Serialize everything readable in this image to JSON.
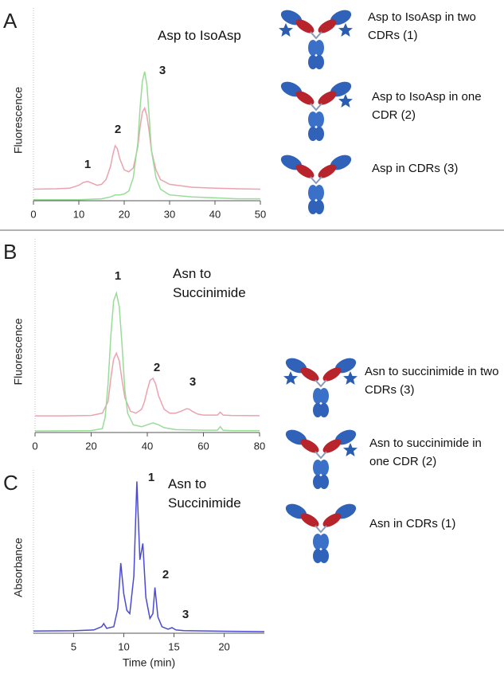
{
  "chart_data": [
    {
      "type": "line",
      "panel": "A",
      "title": "Asp to IsoAsp",
      "y_label": "Fluorescence",
      "xlim": [
        0,
        50
      ],
      "xticks": [
        0,
        10,
        20,
        30,
        40,
        50
      ],
      "ylim": [
        0,
        100
      ],
      "annotations": [
        "1",
        "2",
        "3"
      ],
      "series": [
        {
          "color": "#eba3ad",
          "x": [
            0,
            5,
            8,
            10,
            11,
            12,
            13,
            14,
            15,
            16,
            17,
            17.5,
            18,
            18.5,
            19,
            20,
            21,
            22,
            23,
            23.5,
            24,
            24.5,
            25,
            25.5,
            26,
            27,
            28,
            30,
            35,
            40,
            45,
            50
          ],
          "values": [
            6,
            6.2,
            6.5,
            8,
            9.5,
            10,
            9,
            8,
            8.5,
            11,
            18,
            24,
            28.5,
            27,
            22,
            16,
            15,
            17,
            28,
            38,
            46,
            48,
            44,
            36,
            26,
            16,
            11,
            8.5,
            7,
            6.5,
            6.2,
            6
          ]
        },
        {
          "color": "#98dc98",
          "x": [
            0,
            10,
            15,
            17,
            18,
            19,
            20,
            21,
            22,
            23,
            23.5,
            24,
            24.5,
            25,
            25.5,
            26,
            27,
            28,
            30,
            35,
            40,
            45,
            50
          ],
          "values": [
            0.5,
            0.5,
            1,
            2,
            3,
            3,
            3.5,
            5,
            12,
            30,
            48,
            62,
            67,
            60,
            44,
            26,
            12,
            6,
            3,
            2,
            1.5,
            1,
            1
          ]
        }
      ]
    },
    {
      "type": "line",
      "panel": "B",
      "title": "Asn to Succinimide",
      "y_label": "Fluorescence",
      "xlim": [
        0,
        80
      ],
      "xticks": [
        0,
        20,
        40,
        60,
        80
      ],
      "ylim": [
        0,
        100
      ],
      "annotations": [
        "1",
        "2",
        "3"
      ],
      "series": [
        {
          "color": "#eba3ad",
          "x": [
            0,
            10,
            20,
            24,
            26,
            27,
            28,
            29,
            30,
            31,
            32,
            34,
            36,
            38,
            39,
            40,
            41,
            42,
            43,
            44,
            46,
            48,
            50,
            52,
            54,
            55,
            56,
            58,
            60,
            64,
            65,
            66,
            67,
            70,
            80
          ],
          "values": [
            8.6,
            8.6,
            8.8,
            10,
            16,
            28,
            38,
            41,
            37,
            27,
            18,
            11,
            10,
            12,
            16,
            22,
            27,
            28,
            25,
            19,
            12,
            10,
            10,
            11,
            12.3,
            12,
            11,
            9.5,
            9,
            9,
            9,
            10.5,
            9,
            8.8,
            8.7
          ]
        },
        {
          "color": "#98dc98",
          "x": [
            0,
            20,
            24,
            25,
            26,
            27,
            28,
            29,
            30,
            31,
            32,
            33,
            35,
            38,
            40,
            42,
            44,
            46,
            50,
            60,
            65,
            66,
            67,
            70,
            80
          ],
          "values": [
            0.8,
            1,
            2,
            8,
            25,
            50,
            68,
            72,
            65,
            45,
            22,
            10,
            4,
            3,
            4,
            5,
            4,
            2.5,
            1.5,
            1.2,
            1.2,
            3,
            1.2,
            1,
            1
          ]
        }
      ]
    },
    {
      "type": "line",
      "panel": "C",
      "title": "Asn to Succinimide",
      "y_label": "Absorbance",
      "x_label": "Time (min)",
      "xlim": [
        1,
        24
      ],
      "xticks": [
        5,
        10,
        15,
        20
      ],
      "ylim": [
        0,
        100
      ],
      "annotations": [
        "1",
        "2",
        "3"
      ],
      "series": [
        {
          "color": "#4a4ad4",
          "x": [
            1,
            5,
            7,
            7.8,
            8,
            8.3,
            9,
            9.4,
            9.7,
            10,
            10.3,
            10.6,
            11,
            11.3,
            11.6,
            11.9,
            12.2,
            12.6,
            12.9,
            13.1,
            13.4,
            13.8,
            14.4,
            14.8,
            15.2,
            16,
            18,
            20,
            24
          ],
          "values": [
            1.3,
            1.5,
            2,
            4,
            5.9,
            3,
            4,
            15,
            43,
            24,
            14,
            12,
            35,
            93,
            45,
            55,
            22,
            9,
            12,
            28,
            10,
            4,
            2.5,
            3.4,
            2,
            1.6,
            1.4,
            1.2,
            1
          ]
        }
      ]
    }
  ],
  "legends": [
    {
      "items": [
        "Asp to IsoAsp in two CDRs (1)",
        "Asp to IsoAsp in one CDR (2)",
        "Asp in CDRs (3)"
      ]
    },
    {
      "items": [
        "Asn to succinimide in two CDRs (3)",
        "Asn to succinimide in one CDR (2)",
        "Asn in CDRs (1)"
      ]
    }
  ]
}
